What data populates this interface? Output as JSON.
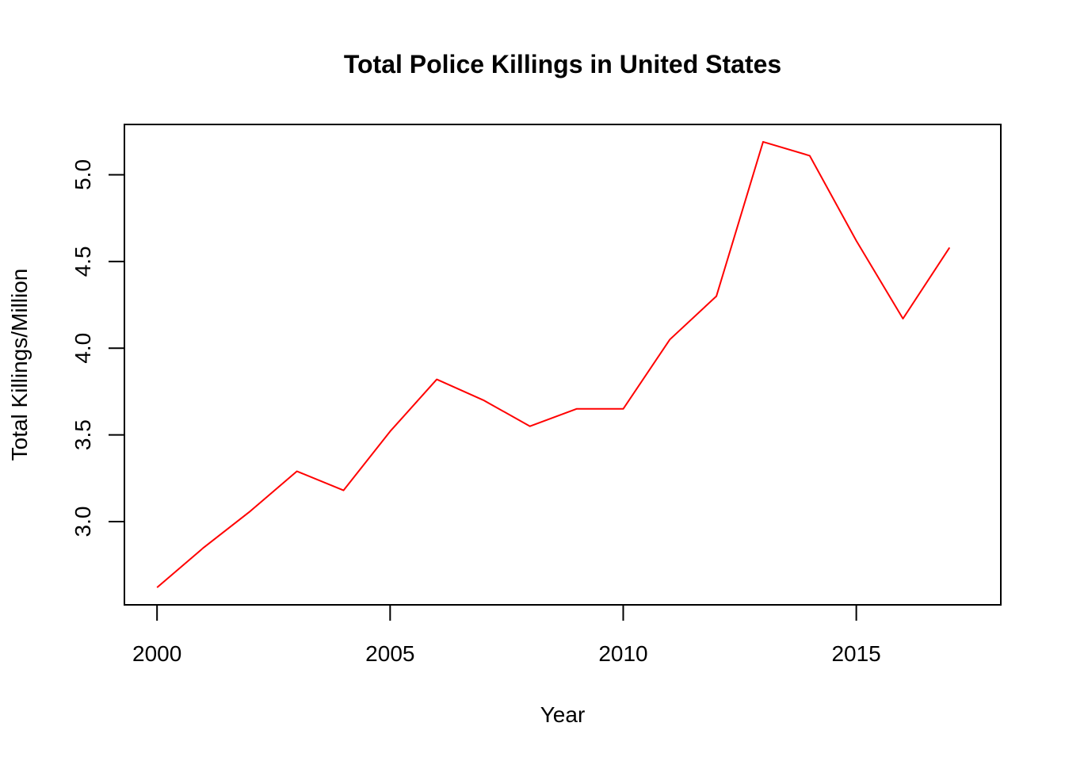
{
  "chart_data": {
    "type": "line",
    "title": "Total Police Killings in United States",
    "xlabel": "Year",
    "ylabel": "Total Killings/Million",
    "x": [
      2000,
      2001,
      2002,
      2003,
      2004,
      2005,
      2006,
      2007,
      2008,
      2009,
      2010,
      2011,
      2012,
      2013,
      2014,
      2015,
      2016,
      2017
    ],
    "series": [
      {
        "values": [
          2.62,
          2.85,
          3.06,
          3.29,
          3.18,
          3.52,
          3.82,
          3.7,
          3.55,
          3.65,
          3.65,
          4.05,
          4.3,
          5.19,
          5.11,
          4.62,
          4.17,
          4.58
        ],
        "color": "#ff0000"
      }
    ],
    "xlim": [
      1999.3,
      2018.1
    ],
    "ylim": [
      2.52,
      5.29
    ],
    "x_ticks": [
      2000,
      2005,
      2010,
      2015
    ],
    "x_tick_labels": [
      "2000",
      "2005",
      "2010",
      "2015"
    ],
    "y_ticks": [
      3.0,
      3.5,
      4.0,
      4.5,
      5.0
    ],
    "y_tick_labels": [
      "3.0",
      "3.5",
      "4.0",
      "4.5",
      "5.0"
    ],
    "grid": false,
    "legend": "none"
  }
}
